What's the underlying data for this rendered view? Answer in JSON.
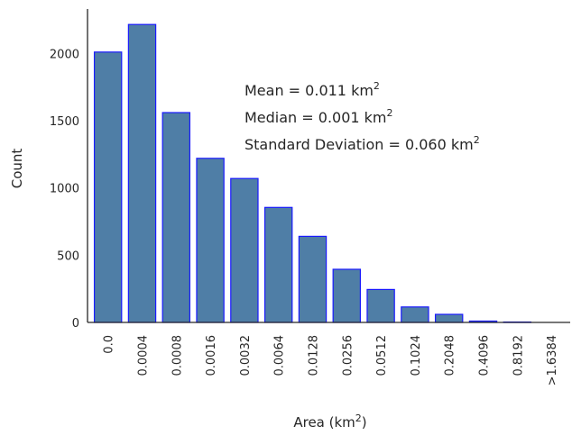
{
  "chart_data": {
    "type": "bar",
    "xlabel": "Area (km",
    "xlabel_sup": "2",
    "xlabel_suffix": ")",
    "ylabel": "Count",
    "ylim": [
      0,
      2330
    ],
    "yticks": [
      0,
      500,
      1000,
      1500,
      2000
    ],
    "categories": [
      "0.0",
      "0.0004",
      "0.0008",
      "0.0016",
      "0.0032",
      "0.0064",
      "0.0128",
      "0.0256",
      "0.0512",
      "0.1024",
      "0.2048",
      "0.4096",
      "0.8192",
      ">1.6384"
    ],
    "values": [
      2010,
      2215,
      1560,
      1220,
      1070,
      855,
      640,
      395,
      245,
      115,
      60,
      10,
      3,
      0
    ],
    "grid": false,
    "colors": {
      "bar_fill": "#4f7ea6",
      "bar_edge": "#1a1aff",
      "axis": "#262626"
    },
    "annotations": [
      {
        "text": "Mean = 0.011 km",
        "sup": "2"
      },
      {
        "text": "Median = 0.001 km",
        "sup": "2"
      },
      {
        "text": "Standard Deviation = 0.060 km",
        "sup": "2"
      }
    ]
  }
}
